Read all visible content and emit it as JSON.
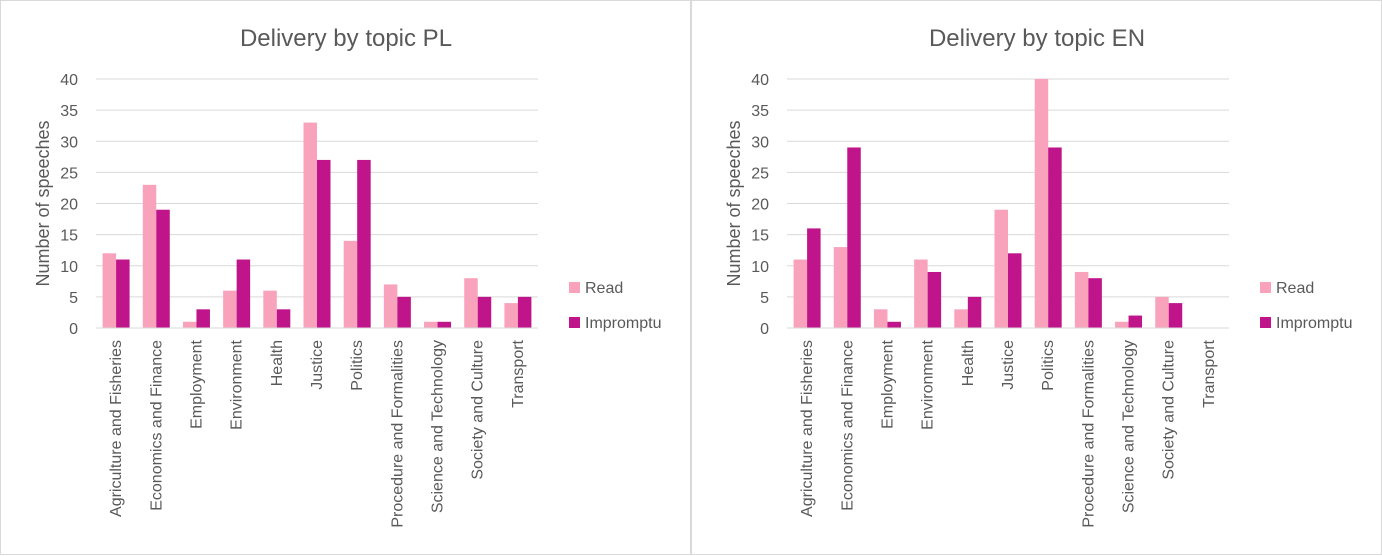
{
  "colors": {
    "read": "#f8a3bb",
    "impromptu": "#c0158a",
    "grid": "#d9d9d9",
    "text": "#595959"
  },
  "chart_data": [
    {
      "type": "bar",
      "title": "Delivery by topic PL",
      "ylabel": "Number of speeches",
      "ylim": [
        0,
        40
      ],
      "yticks": [
        0,
        5,
        10,
        15,
        20,
        25,
        30,
        35,
        40
      ],
      "categories": [
        "Agriculture and Fisheries",
        "Economics and Finance",
        "Employment",
        "Environment",
        "Health",
        "Justice",
        "Politics",
        "Procedure and Formalities",
        "Science and Technology",
        "Society and Culture",
        "Transport"
      ],
      "series": [
        {
          "name": "Read",
          "values": [
            12,
            23,
            1,
            6,
            6,
            33,
            14,
            7,
            1,
            8,
            4
          ]
        },
        {
          "name": "Impromptu",
          "values": [
            11,
            19,
            3,
            11,
            3,
            27,
            27,
            5,
            1,
            5,
            5
          ]
        }
      ],
      "legend": "right",
      "grid": true
    },
    {
      "type": "bar",
      "title": "Delivery by topic EN",
      "ylabel": "Number of speeches",
      "ylim": [
        0,
        40
      ],
      "yticks": [
        0,
        5,
        10,
        15,
        20,
        25,
        30,
        35,
        40
      ],
      "categories": [
        "Agriculture and Fisheries",
        "Economics and Finance",
        "Employment",
        "Environment",
        "Health",
        "Justice",
        "Politics",
        "Procedure and Formalities",
        "Science and Technology",
        "Society and Culture",
        "Transport"
      ],
      "series": [
        {
          "name": "Read",
          "values": [
            11,
            13,
            3,
            11,
            3,
            19,
            40,
            9,
            1,
            5,
            0
          ]
        },
        {
          "name": "Impromptu",
          "values": [
            16,
            29,
            1,
            9,
            5,
            12,
            29,
            8,
            2,
            4,
            0
          ]
        }
      ],
      "legend": "right",
      "grid": true
    }
  ]
}
